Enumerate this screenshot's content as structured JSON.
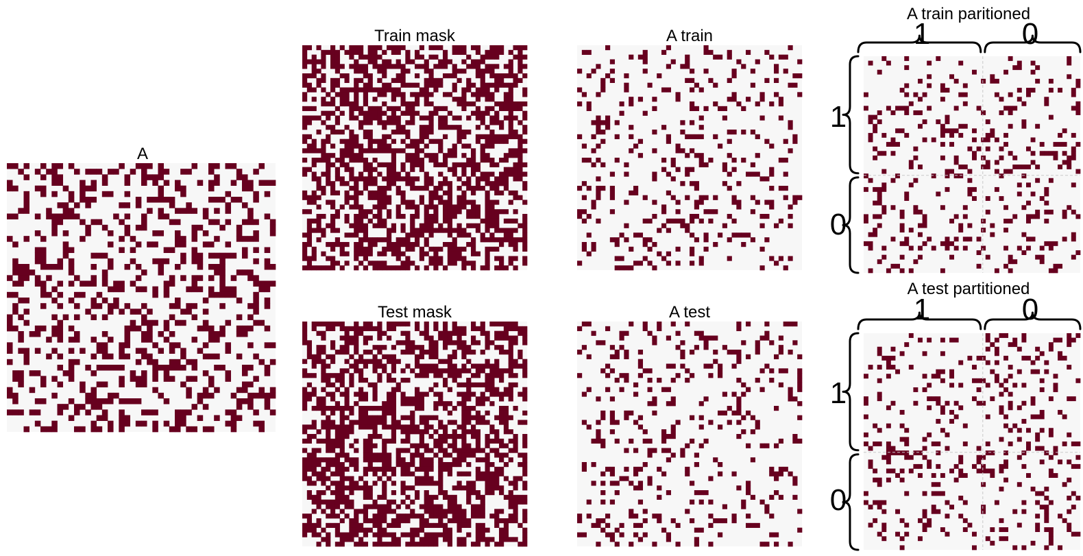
{
  "colors": {
    "on": "#67001f",
    "off": "#f7f7f7",
    "divider": "#c8c8c8"
  },
  "chart_data": [
    {
      "type": "heatmap",
      "title": "A",
      "size": 48,
      "seed": 11,
      "density": 0.34
    },
    {
      "type": "heatmap",
      "title": "Train mask",
      "size": 48,
      "seed": 23,
      "density": 0.55
    },
    {
      "type": "heatmap",
      "title": "Test mask",
      "size": 48,
      "seed": 37,
      "density": 0.55
    },
    {
      "type": "heatmap",
      "title": "A train",
      "size": 48,
      "seed": 41,
      "density": 0.17
    },
    {
      "type": "heatmap",
      "title": "A test",
      "size": 48,
      "seed": 53,
      "density": 0.17
    },
    {
      "type": "heatmap",
      "title": "A train paritioned",
      "size": 48,
      "seed": 61,
      "density": 0.17,
      "partition": {
        "col_groups": [
          "1",
          "0"
        ],
        "row_groups": [
          "1",
          "0"
        ],
        "split": 0.55
      }
    },
    {
      "type": "heatmap",
      "title": "A test partitioned",
      "size": 48,
      "seed": 71,
      "density": 0.17,
      "partition": {
        "col_groups": [
          "1",
          "0"
        ],
        "row_groups": [
          "1",
          "0"
        ],
        "split": 0.55
      }
    }
  ]
}
